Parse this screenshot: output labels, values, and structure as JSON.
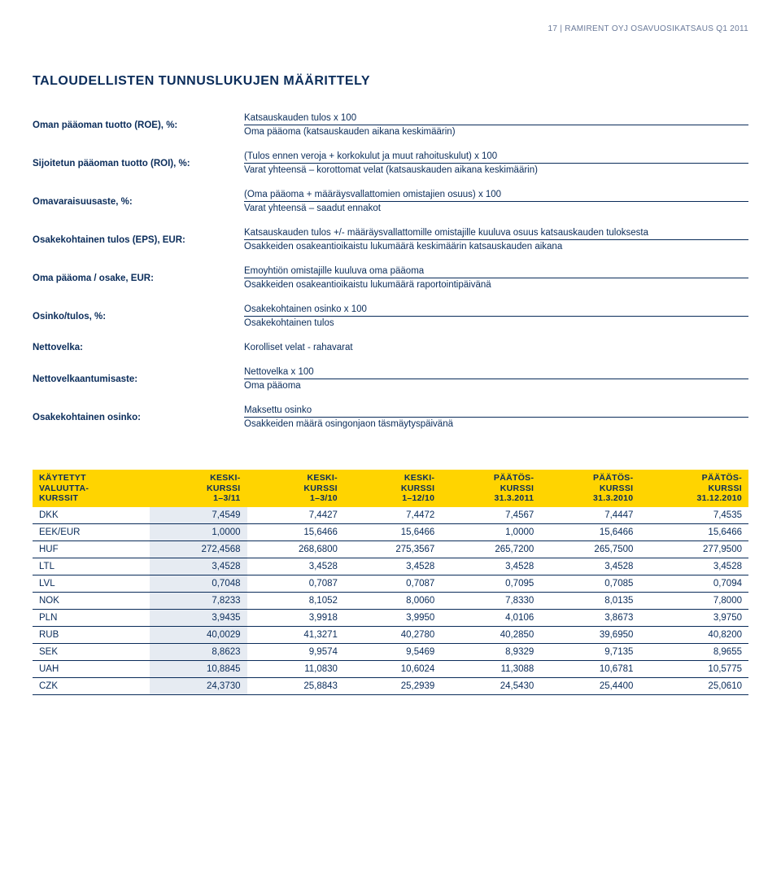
{
  "header": {
    "page_line": "17 | RAMIRENT OYJ OSAVUOSIKATSAUS Q1 2011"
  },
  "title": "TALOUDELLISTEN TUNNUSLUKUJEN MÄÄRITTELY",
  "definitions": [
    {
      "label": "Oman pääoman tuotto (ROE), %:",
      "numerator": "Katsauskauden tulos x 100",
      "denominator": "Oma pääoma (katsauskauden aikana keskimäärin)"
    },
    {
      "label": "Sijoitetun pääoman tuotto (ROI), %:",
      "numerator": "(Tulos ennen veroja + korkokulut ja muut rahoituskulut) x 100",
      "denominator": "Varat yhteensä – korottomat velat (katsauskauden aikana keskimäärin)"
    },
    {
      "label": "Omavaraisuusaste, %:",
      "numerator": "(Oma pääoma + määräysvallattomien omistajien osuus) x 100",
      "denominator": "Varat yhteensä – saadut ennakot"
    },
    {
      "label": "Osakekohtainen tulos (EPS), EUR:",
      "numerator": "Katsauskauden tulos +/- määräysvallattomille omistajille kuuluva osuus katsauskauden tuloksesta",
      "denominator": "Osakkeiden osakeantioikaistu lukumäärä keskimäärin katsauskauden aikana"
    },
    {
      "label": "Oma pääoma / osake, EUR:",
      "numerator": "Emoyhtiön omistajille kuuluva oma pääoma",
      "denominator": "Osakkeiden osakeantioikaistu lukumäärä raportointipäivänä"
    },
    {
      "label": "Osinko/tulos, %:",
      "numerator": "Osakekohtainen osinko x 100",
      "denominator": "Osakekohtainen tulos"
    },
    {
      "label": "Nettovelka:",
      "single": "Korolliset velat - rahavarat"
    },
    {
      "label": "Nettovelkaantumisaste:",
      "numerator": "Nettovelka x 100",
      "denominator": "Oma pääoma"
    },
    {
      "label": "Osakekohtainen osinko:",
      "numerator": "Maksettu osinko",
      "denominator": "Osakkeiden määrä osingonjaon täsmäytyspäivänä"
    }
  ],
  "currency_table": {
    "headers": [
      "KÄYTETYT\nVALUUTTA-\nKURSSIT",
      "KESKI-\nKURSSI\n1–3/11",
      "KESKI-\nKURSSI\n1–3/10",
      "KESKI-\nKURSSI\n1–12/10",
      "PÄÄTÖS-\nKURSSI\n31.3.2011",
      "PÄÄTÖS-\nKURSSI\n31.3.2010",
      "PÄÄTÖS-\nKURSSI\n31.12.2010"
    ],
    "highlight_col": 1,
    "rows": [
      [
        "DKK",
        "7,4549",
        "7,4427",
        "7,4472",
        "7,4567",
        "7,4447",
        "7,4535"
      ],
      [
        "EEK/EUR",
        "1,0000",
        "15,6466",
        "15,6466",
        "1,0000",
        "15,6466",
        "15,6466"
      ],
      [
        "HUF",
        "272,4568",
        "268,6800",
        "275,3567",
        "265,7200",
        "265,7500",
        "277,9500"
      ],
      [
        "LTL",
        "3,4528",
        "3,4528",
        "3,4528",
        "3,4528",
        "3,4528",
        "3,4528"
      ],
      [
        "LVL",
        "0,7048",
        "0,7087",
        "0,7087",
        "0,7095",
        "0,7085",
        "0,7094"
      ],
      [
        "NOK",
        "7,8233",
        "8,1052",
        "8,0060",
        "7,8330",
        "8,0135",
        "7,8000"
      ],
      [
        "PLN",
        "3,9435",
        "3,9918",
        "3,9950",
        "4,0106",
        "3,8673",
        "3,9750"
      ],
      [
        "RUB",
        "40,0029",
        "41,3271",
        "40,2780",
        "40,2850",
        "39,6950",
        "40,8200"
      ],
      [
        "SEK",
        "8,8623",
        "9,9574",
        "9,5469",
        "8,9329",
        "9,7135",
        "8,9655"
      ],
      [
        "UAH",
        "10,8845",
        "11,0830",
        "10,6024",
        "11,3088",
        "10,6781",
        "10,5775"
      ],
      [
        "CZK",
        "24,3730",
        "25,8843",
        "25,2939",
        "24,5430",
        "25,4400",
        "25,0610"
      ]
    ]
  },
  "colors": {
    "text": "#0a2c5a",
    "header_bg": "#ffd400",
    "highlight_bg": "#e6ebf2",
    "rule": "#0a2c5a"
  }
}
